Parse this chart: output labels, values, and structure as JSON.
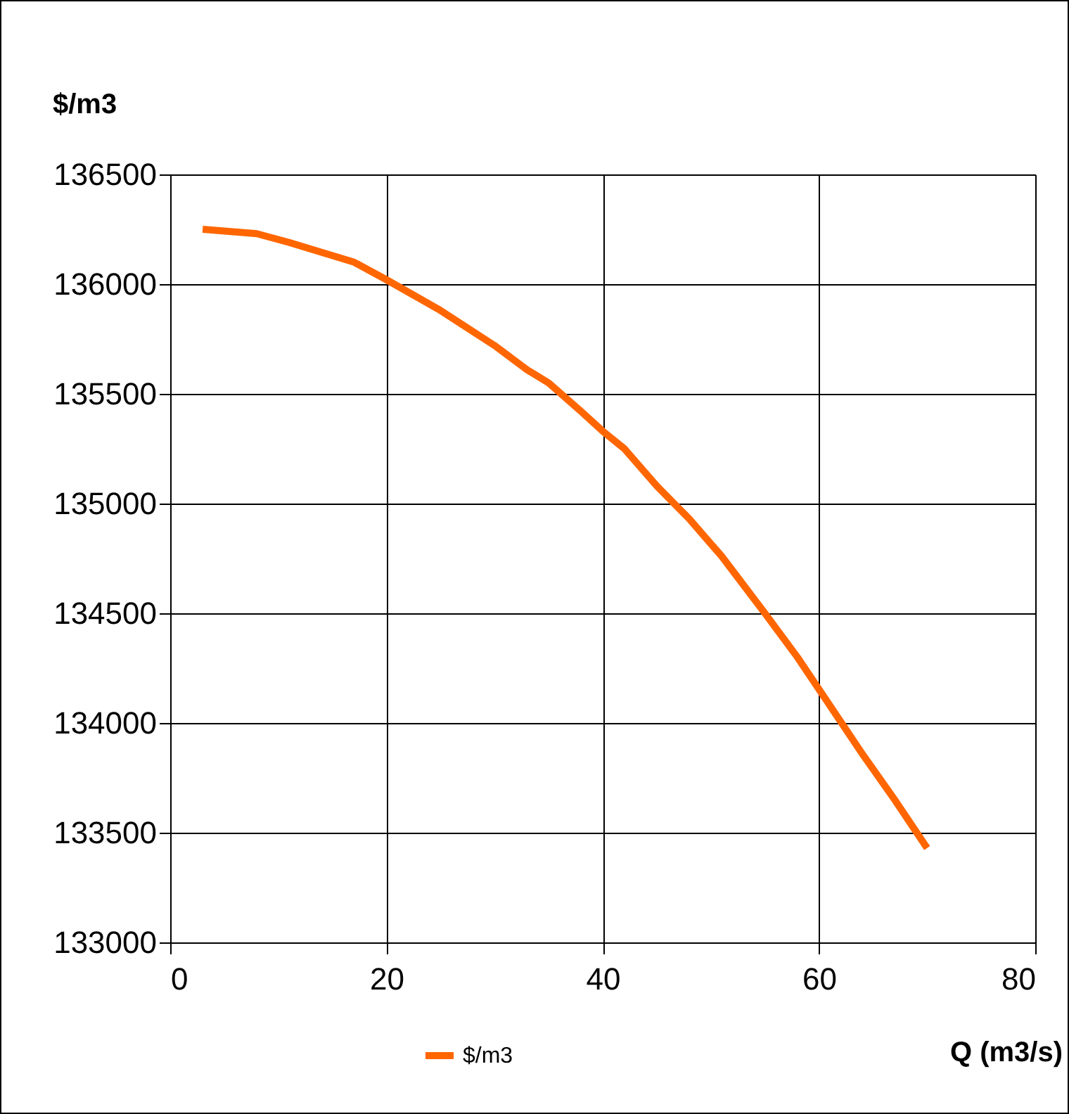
{
  "chart_data": {
    "type": "line",
    "xlabel": "Q (m3/s)",
    "ylabel": "$/m3",
    "x": [
      3,
      8,
      11,
      17,
      20,
      25,
      30,
      33,
      35,
      38,
      40,
      42,
      45,
      48,
      51,
      55,
      58,
      61,
      64,
      67,
      70
    ],
    "series": [
      {
        "name": "$/m3",
        "color": "#ff6600",
        "values": [
          136250,
          136230,
          136190,
          136100,
          136020,
          135880,
          135720,
          135610,
          135550,
          135420,
          135330,
          135250,
          135080,
          134930,
          134760,
          134500,
          134300,
          134080,
          133860,
          133650,
          133430
        ]
      }
    ],
    "xlim": [
      0,
      80
    ],
    "xticks": [
      0,
      20,
      40,
      60,
      80
    ],
    "ylim": [
      133000,
      136500
    ],
    "yticks": [
      133000,
      133500,
      134000,
      134500,
      135000,
      135500,
      136000,
      136500
    ],
    "grid": true,
    "legend": "bottom",
    "marker": "none",
    "line_style": "solid"
  }
}
